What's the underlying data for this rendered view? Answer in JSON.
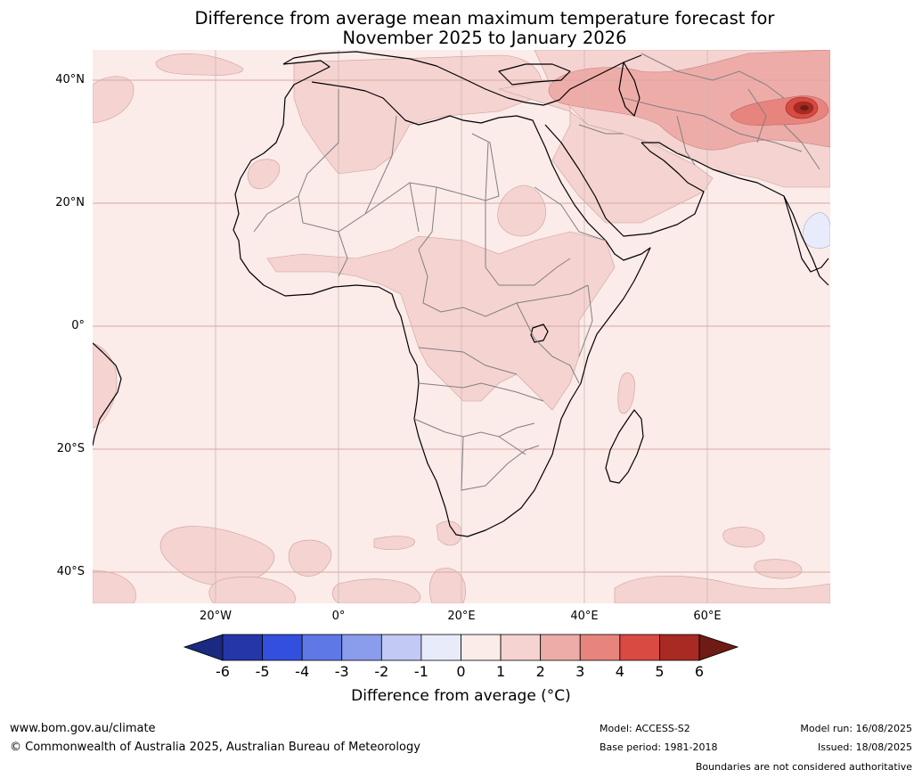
{
  "title": {
    "line1": "Difference from average mean maximum temperature forecast for",
    "line2": "November 2025 to January 2026"
  },
  "map": {
    "lat_ticks": [
      "40°N",
      "20°N",
      "0°",
      "20°S",
      "40°S"
    ],
    "lon_ticks": [
      "20°W",
      "0°",
      "20°E",
      "40°E",
      "60°E"
    ]
  },
  "colorbar": {
    "tick_labels": [
      "-6",
      "-5",
      "-4",
      "-3",
      "-2",
      "-1",
      "0",
      "1",
      "2",
      "3",
      "4",
      "5",
      "6"
    ],
    "colors": [
      "#1a2a80",
      "#2537a8",
      "#3250dd",
      "#5e78e6",
      "#8a9cec",
      "#c1c9f4",
      "#e8ebfa",
      "#fbebe9",
      "#f5d3d1",
      "#eeaca8",
      "#e8847e",
      "#d94a42",
      "#a82a22",
      "#6e1b15"
    ],
    "title": "Difference from average (°C)"
  },
  "footer": {
    "website": "www.bom.gov.au/climate",
    "copyright": "© Commonwealth of Australia 2025, Australian Bureau of Meteorology",
    "model": "Model: ACCESS-S2",
    "base_period": "Base period: 1981-2018",
    "model_run": "Model run: 16/08/2025",
    "issued": "Issued: 18/08/2025",
    "disclaimer": "Boundaries are not considered authoritative"
  }
}
